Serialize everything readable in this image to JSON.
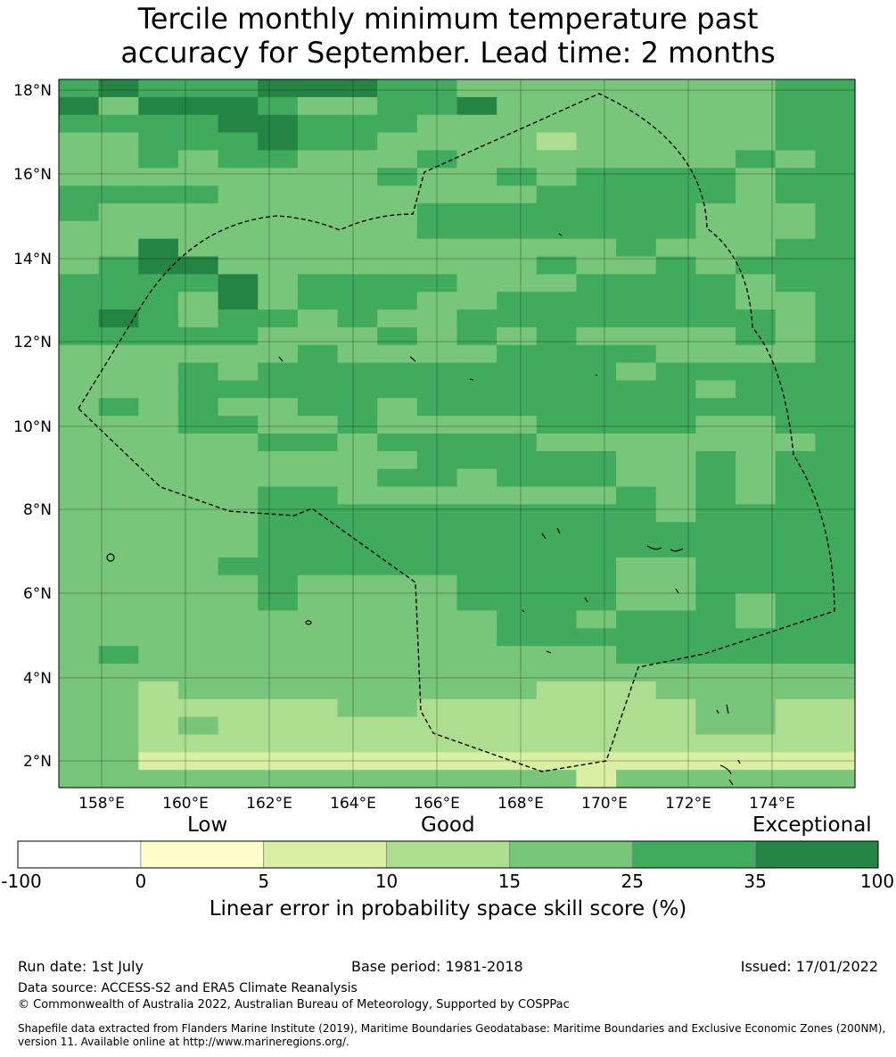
{
  "header": {
    "title_line1": "Tercile monthly minimum temperature past",
    "title_line2": "accuracy for September. Lead time: 2 months"
  },
  "map": {
    "lon_labels": [
      "158°E",
      "160°E",
      "162°E",
      "164°E",
      "166°E",
      "168°E",
      "170°E",
      "172°E",
      "174°E"
    ],
    "lat_labels": [
      "18°N",
      "16°N",
      "14°N",
      "12°N",
      "10°N",
      "8°N",
      "6°N",
      "4°N",
      "2°N"
    ],
    "grid_rows": [
      "56555666554444444455",
      "64666544556444444455",
      "55556655544444444455",
      "44555655444434444455",
      "44545544454444444545",
      "44444444544545555455",
      "55554444444455555455",
      "54444444455555554445",
      "44444444455555554445",
      "44644444444444544455",
      "45664444444454454555",
      "55556455554445555455",
      "55546455544555555445",
      "56545545445555555545",
      "55555444545454444545",
      "44444454444555544445",
      "44454555555555455555",
      "44455555555555554555",
      "45454455455555555555",
      "44455445444455554455",
      "44444554555544444445",
      "44444444455555445455",
      "44444444554555445455",
      "44444554444444545455",
      "44444555555555545555",
      "44444555555555555555",
      "44444555555555555555",
      "44445555555555445555",
      "44444544445555445555",
      "44444544445555445455",
      "44444444444554555455",
      "44444444444555555555",
      "45444444444444555555",
      "44444444444444444444",
      "44344444444433344444",
      "44333334433333334433",
      "44343333333333334433",
      "44333333333333333333",
      "44222222222222222222",
      "44444444444442444444"
    ]
  },
  "colorbar": {
    "heading_low": "Low",
    "heading_good": "Good",
    "heading_exceptional": "Exceptional",
    "ticks": [
      "-100",
      "0",
      "5",
      "10",
      "15",
      "25",
      "35",
      "100"
    ],
    "colors": [
      "#ffffff",
      "#ffffcc",
      "#d9f0a3",
      "#addd8e",
      "#78c679",
      "#41ab5d",
      "#238443"
    ],
    "label": "Linear error in probability space skill score (%)"
  },
  "footer": {
    "run_date": "Run date: 1st July",
    "base_period": "Base period: 1981-2018",
    "issued": "Issued: 17/01/2022",
    "data_source": "Data source: ACCESS-S2 and ERA5 Climate Reanalysis",
    "copyright": "© Commonwealth of Australia 2022, Australian Bureau of Meteorology, Supported by COSPPac",
    "shapefile_note": "Shapefile data extracted from Flanders Marine Institute (2019), Maritime Boundaries Geodatabase: Maritime Boundaries and Exclusive Economic Zones (200NM), version 11. Available online at http://www.marineregions.org/."
  }
}
